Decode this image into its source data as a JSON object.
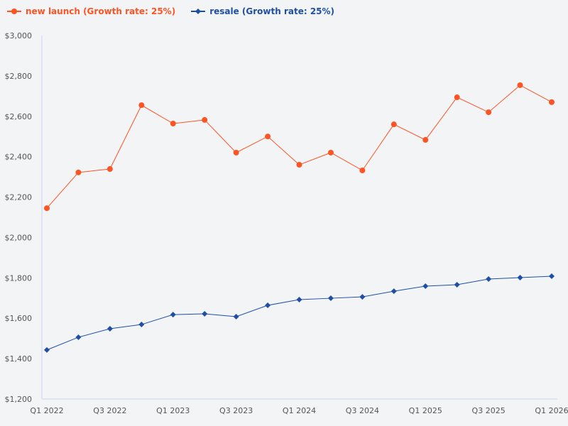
{
  "chart_data": {
    "type": "line",
    "categories": [
      "Q1 2022",
      "Q2 2022",
      "Q3 2022",
      "Q4 2022",
      "Q1 2023",
      "Q2 2023",
      "Q3 2023",
      "Q4 2023",
      "Q1 2024",
      "Q2 2024",
      "Q3 2024",
      "Q4 2024",
      "Q1 2025",
      "Q2 2025",
      "Q3 2025",
      "Q4 2025",
      "Q1 2026"
    ],
    "x_tick_labels": [
      "Q1 2022",
      "Q3 2022",
      "Q1 2023",
      "Q3 2023",
      "Q1 2024",
      "Q3 2024",
      "Q1 2025",
      "Q3 2025",
      "Q1 2026"
    ],
    "y_tick_labels": [
      "$1,200",
      "$1,400",
      "$1,600",
      "$1,800",
      "$2,000",
      "$2,200",
      "$2,400",
      "$2,600",
      "$2,800",
      "$3,000"
    ],
    "ylim": [
      1200,
      3000
    ],
    "grid": false,
    "legend_position": "top-left",
    "series": [
      {
        "name": "new launch (Growth rate: 25%)",
        "color": "#fc5424",
        "marker": "circle",
        "values": [
          2145,
          2322,
          2339,
          2655,
          2564,
          2582,
          2420,
          2500,
          2360,
          2420,
          2332,
          2560,
          2483,
          2694,
          2620,
          2754,
          2670
        ]
      },
      {
        "name": "resale (Growth rate: 25%)",
        "color": "#1f4fa3",
        "marker": "diamond",
        "values": [
          1443,
          1506,
          1548,
          1569,
          1618,
          1622,
          1608,
          1664,
          1692,
          1699,
          1706,
          1734,
          1759,
          1766,
          1794,
          1801,
          1808
        ]
      }
    ]
  }
}
